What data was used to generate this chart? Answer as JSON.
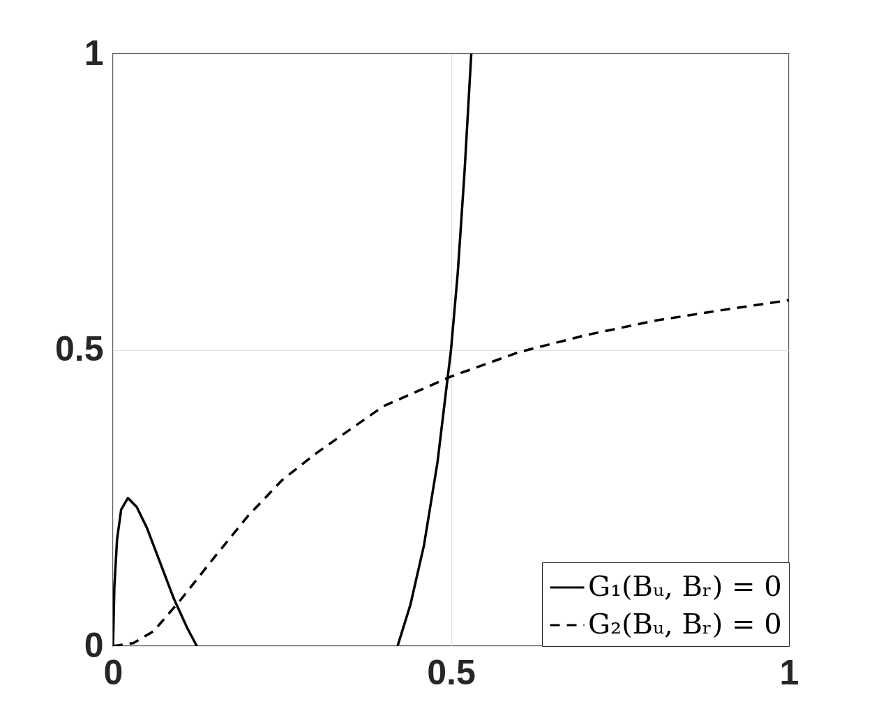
{
  "chart_data": {
    "type": "line",
    "series": [
      {
        "name": "G₁(Bᵤ, Bᵣ) = 0",
        "color": "#000000",
        "line_style": "solid",
        "x": [
          0,
          0.002,
          0.006,
          0.012,
          0.022,
          0.035,
          0.05,
          0.07,
          0.09,
          0.11,
          0.124,
          0.3,
          0.421,
          0.44,
          0.46,
          0.48,
          0.5,
          0.51,
          0.52,
          0.53
        ],
        "values": [
          0,
          0.1,
          0.18,
          0.23,
          0.25,
          0.235,
          0.2,
          0.14,
          0.08,
          0.03,
          0,
          null,
          0,
          0.07,
          0.17,
          0.31,
          0.5,
          0.63,
          0.8,
          1.0
        ]
      },
      {
        "name": "G₂(Bᵤ, Bᵣ) = 0",
        "color": "#000000",
        "line_style": "dashed",
        "x": [
          0,
          0.03,
          0.06,
          0.1,
          0.15,
          0.2,
          0.25,
          0.3,
          0.4,
          0.5,
          0.6,
          0.7,
          0.8,
          0.9,
          1.0
        ],
        "values": [
          0,
          0.005,
          0.025,
          0.078,
          0.15,
          0.22,
          0.28,
          0.325,
          0.405,
          0.455,
          0.496,
          0.525,
          0.549,
          0.567,
          0.584
        ]
      }
    ],
    "xlim": [
      0,
      1
    ],
    "ylim": [
      0,
      1
    ],
    "xticks": [
      0,
      0.5,
      1
    ],
    "yticks": [
      0,
      0.5,
      1
    ],
    "grid": true,
    "legend": "bottom right"
  }
}
